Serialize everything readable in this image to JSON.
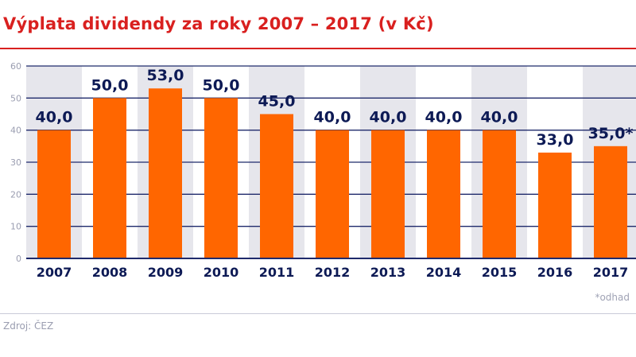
{
  "chart_data": {
    "type": "bar",
    "title": "Výplata dividendy za roky 2007 – 2017 (v Kč)",
    "categories": [
      "2007",
      "2008",
      "2009",
      "2010",
      "2011",
      "2012",
      "2013",
      "2014",
      "2015",
      "2016",
      "2017"
    ],
    "values": [
      40,
      50,
      53,
      50,
      45,
      40,
      40,
      40,
      40,
      33,
      35
    ],
    "data_labels": [
      "40,0",
      "50,0",
      "53,0",
      "50,0",
      "45,0",
      "40,0",
      "40,0",
      "40,0",
      "40,0",
      "33,0",
      "35,0*"
    ],
    "ylim": [
      0,
      60
    ],
    "yticks": [
      0,
      10,
      20,
      30,
      40,
      50,
      60
    ],
    "grid": true,
    "alternating_column_shading": true,
    "colors": {
      "bar": "#ff6600",
      "label": "#0d1a55",
      "grid": "#1f2a6b",
      "shade": "#e6e6ec",
      "title": "#d9201f"
    }
  },
  "note": "*odhad",
  "source": "Zdroj: ČEZ"
}
